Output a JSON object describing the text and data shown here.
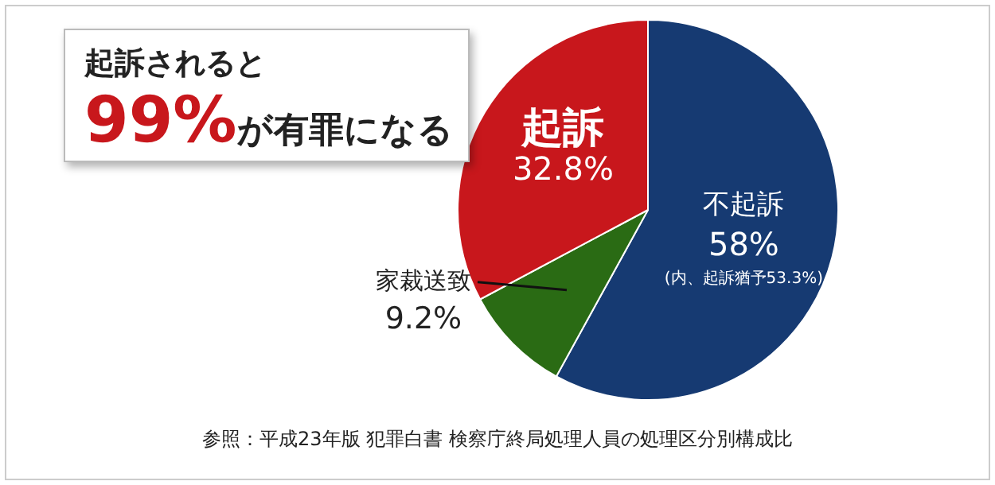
{
  "chart_data": {
    "type": "pie",
    "categories": [
      "不起訴",
      "家裁送致",
      "起訴"
    ],
    "values": [
      58,
      9.2,
      32.8
    ],
    "value_labels": [
      "58%",
      "9.2%",
      "32.8%"
    ],
    "colors": [
      "#163a72",
      "#2a6b14",
      "#c8171c"
    ],
    "legend": false,
    "annotations": [
      "起訴されると",
      "99%が有罪になる",
      "(内、起訴猶予53.3%)",
      "参照：平成23年版 犯罪白書 検察庁終局処理人員の処理区分別構成比"
    ]
  }
}
